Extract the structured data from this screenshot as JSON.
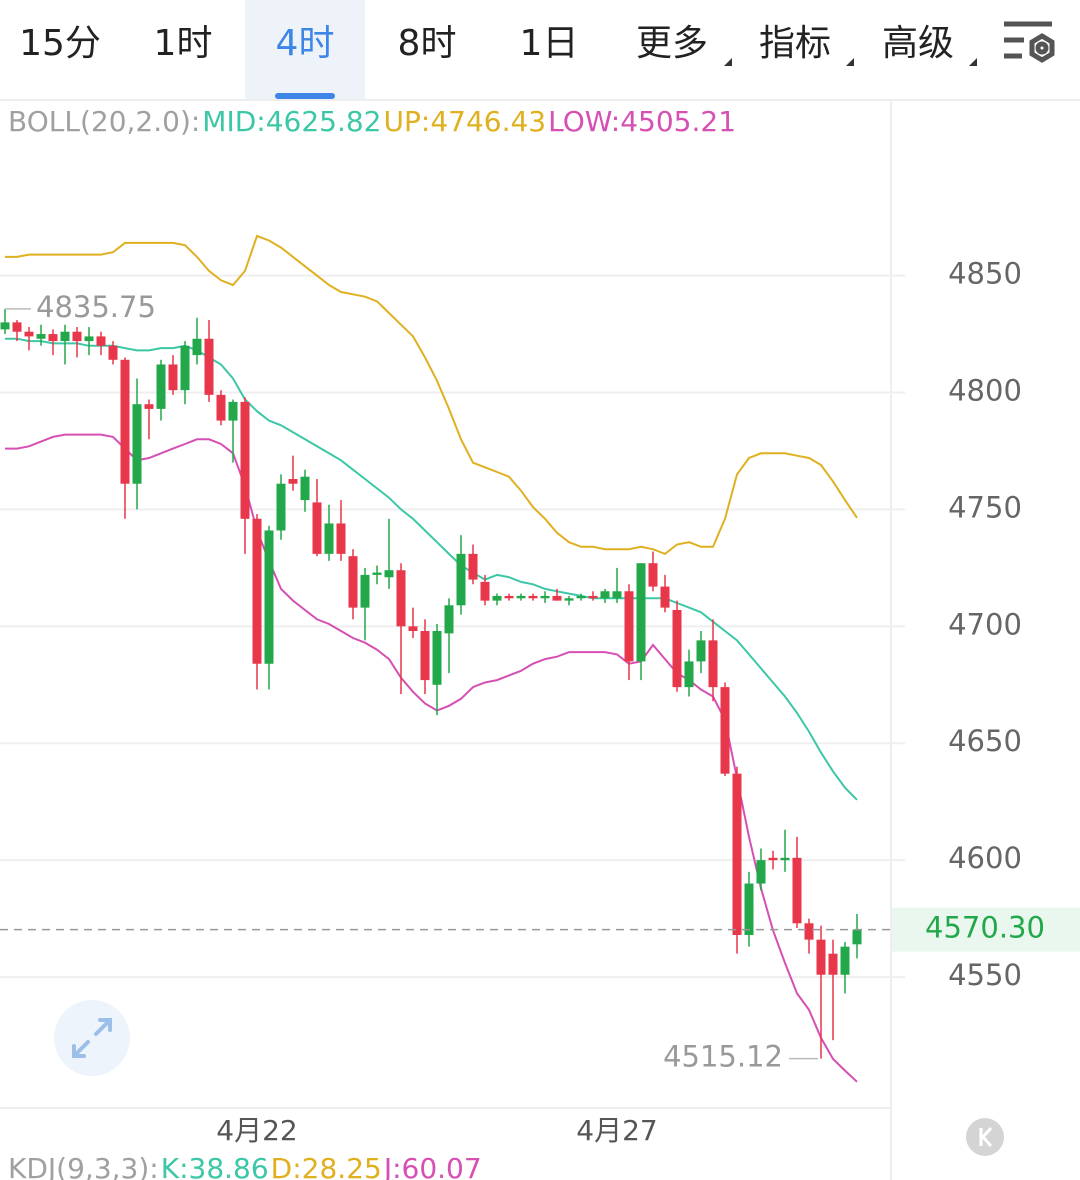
{
  "tabs": [
    "15分",
    "1时",
    "4时",
    "8时",
    "1日",
    "更多",
    "指标",
    "高级"
  ],
  "chart_data": {
    "type": "candlestick",
    "legend": [
      {
        "text": "BOLL(20,2.0):",
        "color": "#a0a0a0"
      },
      {
        "text": "MID:4625.82",
        "color": "#3cc7a6"
      },
      {
        "text": "UP:4746.43",
        "color": "#e0b020"
      },
      {
        "text": "LOW:4505.21",
        "color": "#d64fb3"
      }
    ],
    "sub_legend": [
      {
        "text": "KDJ(9,3,3):",
        "color": "#a0a0a0"
      },
      {
        "text": "K:38.86",
        "color": "#3cc7a6"
      },
      {
        "text": "D:28.25",
        "color": "#e0b020"
      },
      {
        "text": "J:60.07",
        "color": "#d64fb3"
      }
    ],
    "categories": [
      null,
      null,
      null,
      null,
      null,
      null,
      null,
      null,
      null,
      null,
      null,
      null,
      null,
      null,
      null,
      null,
      null,
      null,
      null,
      null,
      null,
      "4月22",
      null,
      null,
      null,
      null,
      null,
      null,
      null,
      null,
      null,
      null,
      null,
      null,
      null,
      null,
      null,
      null,
      null,
      null,
      null,
      null,
      null,
      null,
      null,
      null,
      null,
      null,
      null,
      null,
      null,
      "4月27",
      null,
      null,
      null,
      null,
      null,
      null,
      null,
      null,
      null,
      null,
      null,
      null,
      null,
      null,
      null,
      null,
      null,
      null,
      null,
      null
    ],
    "open": [
      4827,
      4830,
      4826,
      4823,
      4825,
      4822,
      4826,
      4822,
      4824,
      4820,
      4814,
      4761,
      4795,
      4793,
      4812,
      4801,
      4816,
      4823,
      4799,
      4788,
      4796,
      4746,
      4684,
      4741,
      4763,
      4754,
      4753,
      4731,
      4744,
      4730,
      4708,
      4722,
      4721,
      4724,
      4700,
      4698,
      4675,
      4697,
      4709,
      4731,
      4719,
      4711,
      4713,
      4712,
      4713,
      4712,
      4713,
      4711,
      4712,
      4713,
      4712,
      4712,
      4715,
      4685,
      4727,
      4717,
      4707,
      4674,
      4685,
      4694,
      4674,
      4637,
      4568,
      4590,
      4601,
      4600,
      4601,
      4573,
      4566,
      4560,
      4551,
      4564
    ],
    "high": [
      4835.75,
      4831,
      4828,
      4829,
      4827,
      4829,
      4828,
      4828,
      4826,
      4822,
      4815,
      4806,
      4797,
      4814,
      4816,
      4822,
      4832,
      4831,
      4801,
      4797,
      4798,
      4748,
      4743,
      4765,
      4773,
      4767,
      4763,
      4752,
      4754,
      4733,
      4725,
      4726,
      4746,
      4727,
      4708,
      4703,
      4701,
      4712,
      4739,
      4735,
      4722,
      4714,
      4714,
      4714,
      4714,
      4715,
      4716,
      4713,
      4714,
      4715,
      4716,
      4725,
      4718,
      4727,
      4732,
      4722,
      4711,
      4690,
      4698,
      4703,
      4676,
      4640,
      4595,
      4605,
      4604,
      4613,
      4610,
      4575,
      4572,
      4566,
      4565,
      4577
    ],
    "low": [
      4825,
      4822,
      4818,
      4820,
      4816,
      4812,
      4815,
      4816,
      4816,
      4812,
      4746,
      4750,
      4780,
      4788,
      4799,
      4795,
      4812,
      4796,
      4786,
      4770,
      4731,
      4673,
      4673,
      4737,
      4758,
      4749,
      4730,
      4728,
      4728,
      4703,
      4694,
      4718,
      4716,
      4671,
      4695,
      4671,
      4662,
      4680,
      4705,
      4718,
      4709,
      4709,
      4711,
      4711,
      4711,
      4710,
      4711,
      4709,
      4711,
      4711,
      4710,
      4710,
      4677,
      4677,
      4715,
      4706,
      4672,
      4670,
      4680,
      4668,
      4636,
      4560,
      4563,
      4587,
      4596,
      4595,
      4571,
      4560,
      4515.12,
      4523,
      4543,
      4558
    ],
    "close": [
      4830,
      4826,
      4824,
      4825,
      4822,
      4826,
      4822,
      4824,
      4820,
      4814,
      4761,
      4795,
      4793,
      4812,
      4801,
      4820,
      4823,
      4799,
      4788,
      4796,
      4746,
      4684,
      4741,
      4761,
      4761,
      4764,
      4731,
      4744,
      4731,
      4708,
      4722,
      4723,
      4724,
      4700,
      4698,
      4677,
      4698,
      4709,
      4731,
      4720,
      4711,
      4713,
      4712,
      4713,
      4712,
      4713,
      4711,
      4712,
      4713,
      4712,
      4715,
      4715,
      4685,
      4727,
      4717,
      4708,
      4674,
      4685,
      4694,
      4674,
      4637,
      4568,
      4590,
      4600,
      4600,
      4601,
      4573,
      4566,
      4551,
      4551,
      4563,
      4570.3
    ],
    "up_color": "#22a84a",
    "down_color": "#e8364a",
    "series": [
      {
        "name": "UP:4746.43",
        "color": "#e0b020",
        "values": [
          4858,
          4858,
          4859,
          4859,
          4859,
          4859,
          4859,
          4859,
          4859,
          4860,
          4864,
          4864,
          4864,
          4864,
          4864,
          4863,
          4858,
          4852,
          4848,
          4846,
          4852,
          4867,
          4865,
          4862,
          4858,
          4854,
          4850,
          4846,
          4843,
          4842,
          4841,
          4839,
          4834,
          4829,
          4824,
          4815,
          4805,
          4793,
          4780,
          4770,
          4768,
          4766,
          4764,
          4758,
          4751,
          4746,
          4740,
          4736,
          4734,
          4734,
          4733,
          4733,
          4733,
          4734,
          4733,
          4731,
          4735,
          4736,
          4734,
          4734,
          4746,
          4765,
          4772,
          4774,
          4774,
          4774,
          4773,
          4772,
          4769,
          4762,
          4754,
          4746.43
        ]
      },
      {
        "name": "MID:4625.82",
        "color": "#3cc7a6",
        "values": [
          4823,
          4823,
          4822,
          4822,
          4821,
          4821,
          4821,
          4820,
          4820,
          4820,
          4819,
          4818,
          4818,
          4819,
          4819,
          4820,
          4818,
          4815,
          4812,
          4806,
          4797,
          4792,
          4788,
          4786,
          4783,
          4780,
          4777,
          4774,
          4771,
          4767,
          4763,
          4759,
          4755,
          4750,
          4746,
          4741,
          4736,
          4731,
          4726,
          4723,
          4720,
          4722,
          4721,
          4719,
          4718,
          4716,
          4715,
          4714,
          4713,
          4712,
          4712,
          4712,
          4712,
          4712,
          4712,
          4712,
          4710,
          4708,
          4706,
          4702,
          4698,
          4694,
          4688,
          4682,
          4676,
          4670,
          4663,
          4655,
          4646,
          4638,
          4631,
          4625.82
        ]
      },
      {
        "name": "LOW:4505.21",
        "color": "#d64fb3",
        "values": [
          4776,
          4776,
          4777,
          4779,
          4781,
          4782,
          4782,
          4782,
          4782,
          4781,
          4776,
          4771,
          4772,
          4774,
          4776,
          4778,
          4780,
          4780,
          4778,
          4774,
          4760,
          4741,
          4728,
          4716,
          4711,
          4707,
          4703,
          4701,
          4698,
          4695,
          4693,
          4690,
          4686,
          4678,
          4672,
          4667,
          4664,
          4666,
          4669,
          4674,
          4676,
          4677,
          4679,
          4681,
          4684,
          4686,
          4687,
          4689,
          4689,
          4689,
          4689,
          4688,
          4684,
          4685,
          4692,
          4686,
          4680,
          4677,
          4673,
          4670,
          4660,
          4635,
          4610,
          4588,
          4570,
          4556,
          4543,
          4536,
          4524,
          4515,
          4510,
          4505.21
        ]
      }
    ],
    "max_label": "4835.75",
    "min_label": "4515.12",
    "last_price_label": "4570.30",
    "ylim": [
      4494,
      4908
    ],
    "yticks": [
      4550,
      4600,
      4650,
      4700,
      4750,
      4800,
      4850
    ],
    "grid": true
  }
}
